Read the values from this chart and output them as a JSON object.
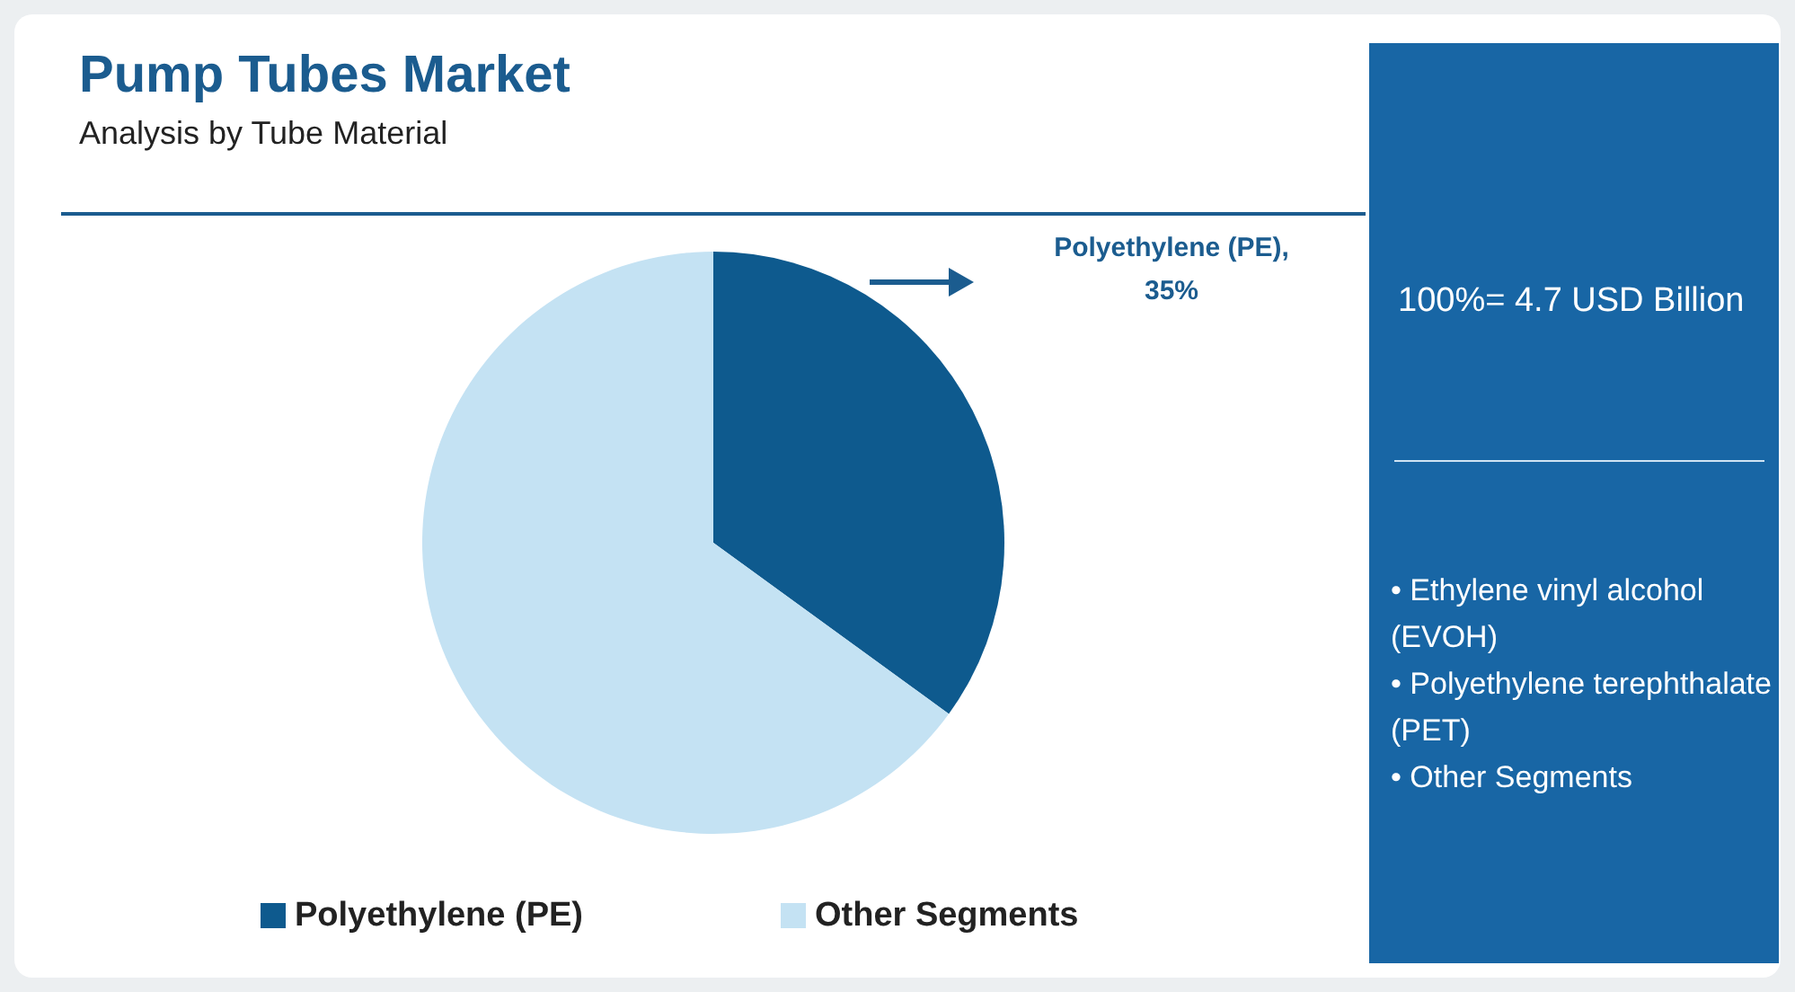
{
  "chart_data": {
    "type": "pie",
    "title": "Pump Tubes Market",
    "subtitle": "Analysis by Tube Material",
    "categories": [
      "Polyethylene (PE)",
      "Other Segments"
    ],
    "values": [
      35,
      65
    ],
    "colors": [
      "#0e5a8e",
      "#c4e2f3"
    ],
    "value_labels": [
      "Polyethylene (PE), 35%",
      null
    ],
    "legend": "bottom",
    "annotations": [
      "100%= 4.7 USD Billion",
      "• Ethylene vinyl alcohol (EVOH)",
      "• Polyethylene terephthalate (PET)",
      "• Other Segments"
    ]
  }
}
